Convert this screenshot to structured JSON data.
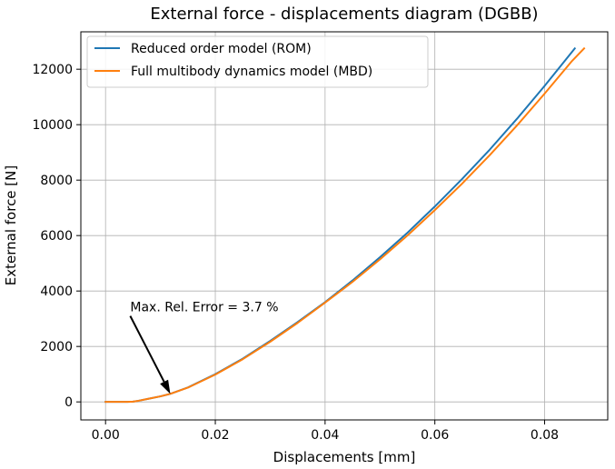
{
  "chart_data": {
    "type": "line",
    "title": "External force - displacements diagram (DGBB)",
    "xlabel": "Displacements [mm]",
    "ylabel": "External force [N]",
    "xlim": [
      -0.0045,
      0.0915
    ],
    "ylim": [
      -650,
      13350
    ],
    "xticks": [
      0.0,
      0.02,
      0.04,
      0.06,
      0.08
    ],
    "xtick_labels": [
      "0.00",
      "0.02",
      "0.04",
      "0.06",
      "0.08"
    ],
    "yticks": [
      0,
      2000,
      4000,
      6000,
      8000,
      10000,
      12000
    ],
    "ytick_labels": [
      "0",
      "2000",
      "4000",
      "6000",
      "8000",
      "10000",
      "12000"
    ],
    "grid": true,
    "legend_position": "top-left",
    "series": [
      {
        "name": "Reduced order model (ROM)",
        "color": "#1f77b4",
        "x": [
          0.0,
          0.002,
          0.004,
          0.005,
          0.006,
          0.008,
          0.01,
          0.0118,
          0.015,
          0.02,
          0.025,
          0.03,
          0.035,
          0.04,
          0.045,
          0.05,
          0.055,
          0.06,
          0.065,
          0.07,
          0.075,
          0.08,
          0.0855
        ],
        "y": [
          0,
          0,
          0,
          10,
          40,
          120,
          200,
          290,
          520,
          1000,
          1560,
          2200,
          2880,
          3600,
          4380,
          5220,
          6100,
          7050,
          8050,
          9100,
          10220,
          11400,
          12750
        ]
      },
      {
        "name": "Full multibody dynamics model (MBD)",
        "color": "#ff7f0e",
        "x": [
          0.0,
          0.002,
          0.004,
          0.005,
          0.006,
          0.008,
          0.01,
          0.0118,
          0.015,
          0.02,
          0.025,
          0.03,
          0.035,
          0.04,
          0.045,
          0.05,
          0.055,
          0.06,
          0.065,
          0.07,
          0.075,
          0.08,
          0.085,
          0.0872
        ],
        "y": [
          0,
          0,
          0,
          10,
          40,
          120,
          200,
          290,
          515,
          985,
          1540,
          2170,
          2850,
          3580,
          4330,
          5140,
          6000,
          6920,
          7880,
          8900,
          9980,
          11120,
          12300,
          12750
        ]
      }
    ],
    "annotations": [
      {
        "text": "Max. Rel. Error = 3.7 %",
        "text_x": 0.0045,
        "text_y": 3100,
        "arrow_to_x": 0.0118,
        "arrow_to_y": 290
      }
    ]
  }
}
